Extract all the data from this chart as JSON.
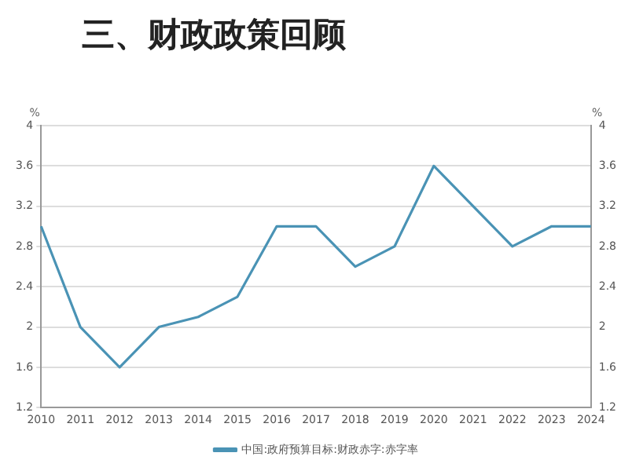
{
  "chart_data": {
    "type": "line",
    "title": "三、财政政策回顾",
    "ylabel": "%",
    "y2label": "%",
    "categories": [
      "2010",
      "2011",
      "2012",
      "2013",
      "2014",
      "2015",
      "2016",
      "2017",
      "2018",
      "2019",
      "2020",
      "2021",
      "2022",
      "2023",
      "2024"
    ],
    "series": [
      {
        "name": "中国:政府预算目标:财政赤字:赤字率",
        "color": "#4a93b5",
        "values": [
          3.0,
          2.0,
          1.6,
          2.0,
          2.1,
          2.3,
          3.0,
          3.0,
          2.6,
          2.8,
          3.6,
          3.2,
          2.8,
          3.0,
          3.0
        ]
      }
    ],
    "ylim": [
      1.2,
      4
    ],
    "yticks": [
      1.2,
      1.6,
      2,
      2.4,
      2.8,
      3.2,
      3.6,
      4
    ],
    "y2lim": [
      1.2,
      4
    ],
    "y2ticks": [
      1.2,
      1.6,
      2,
      2.4,
      2.8,
      3.2,
      3.6,
      4
    ],
    "grid": "y",
    "legend": "bottom",
    "marker": "none",
    "line_style": "solid"
  }
}
